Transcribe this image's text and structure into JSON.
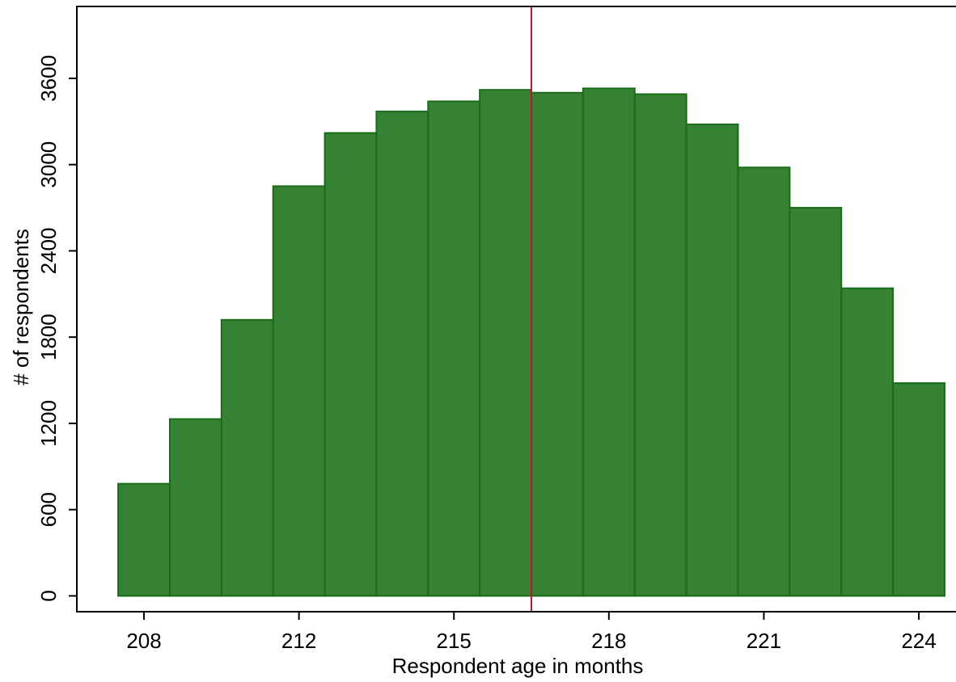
{
  "chart_data": {
    "type": "histogram",
    "x_label": "Respondent age in months",
    "y_label": "# of respondents",
    "bins": [
      0.5,
      1.5,
      2.5,
      3.5,
      4.5,
      5.5,
      6.5,
      7.5,
      8.5,
      9.5,
      10.5,
      11.5,
      12.5,
      13.5,
      14.5,
      15.5,
      16.5
    ],
    "values": [
      780,
      1230,
      1920,
      2850,
      3220,
      3370,
      3440,
      3520,
      3500,
      3530,
      3490,
      3280,
      2980,
      2700,
      2140,
      1480
    ],
    "color": "#358234",
    "edge_color": "#1a6b1a",
    "xlim": [
      -0.3,
      16.72
    ],
    "xticks": [
      {
        "value": 1,
        "label": "208"
      },
      {
        "value": 4,
        "label": "212"
      },
      {
        "value": 7,
        "label": "215"
      },
      {
        "value": 10,
        "label": "218"
      },
      {
        "value": 13,
        "label": "221"
      },
      {
        "value": 16,
        "label": "224"
      }
    ],
    "ylim": [
      -110,
      4100
    ],
    "yticks": [
      0,
      600,
      1200,
      1800,
      2400,
      3000,
      3600
    ],
    "vline": 8.5,
    "vline_color": "#c8102e"
  }
}
